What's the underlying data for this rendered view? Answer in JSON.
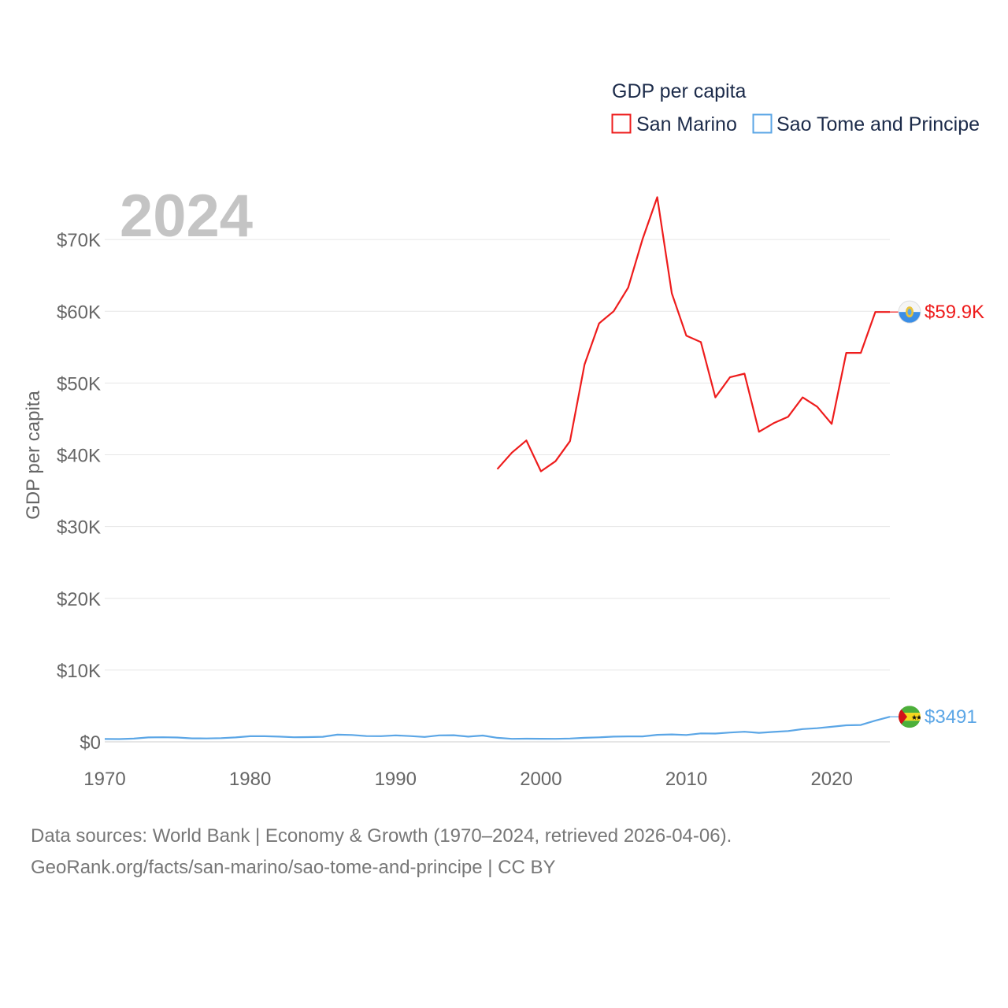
{
  "legend": {
    "title": "GDP per capita",
    "items": [
      {
        "label": "San Marino",
        "color": "#ee1c1c"
      },
      {
        "label": "Sao Tome and Principe",
        "color": "#5ba6e6"
      }
    ]
  },
  "year_label": "2024",
  "end_labels": {
    "san_marino": "$59.9K",
    "sao_tome": "$3491"
  },
  "source": {
    "line1": "Data sources: World Bank | Economy & Growth (1970–2024, retrieved 2026-04-06).",
    "line2": "GeoRank.org/facts/san-marino/sao-tome-and-principe | CC BY"
  },
  "chart_data": {
    "type": "line",
    "title": "GDP per capita",
    "xlabel": "",
    "ylabel": "GDP per capita",
    "xlim": [
      1970,
      2024
    ],
    "ylim": [
      0,
      80000
    ],
    "x_ticks": [
      1970,
      1980,
      1990,
      2000,
      2010,
      2020
    ],
    "x_tick_labels": [
      "1970",
      "1980",
      "1990",
      "2000",
      "2010",
      "2020"
    ],
    "y_ticks": [
      0,
      10000,
      20000,
      30000,
      40000,
      50000,
      60000,
      70000
    ],
    "y_tick_labels": [
      "$0",
      "$10K",
      "$20K",
      "$30K",
      "$40K",
      "$50K",
      "$60K",
      "$70K"
    ],
    "grid": true,
    "legend_position": "top-right",
    "series": [
      {
        "name": "San Marino",
        "color": "#ee1c1c",
        "x": [
          1997,
          1998,
          1999,
          2000,
          2001,
          2002,
          2003,
          2004,
          2005,
          2006,
          2007,
          2008,
          2009,
          2010,
          2011,
          2012,
          2013,
          2014,
          2015,
          2016,
          2017,
          2018,
          2019,
          2020,
          2021,
          2022,
          2023,
          2024
        ],
        "values": [
          38000,
          40300,
          42000,
          37700,
          39100,
          41900,
          52600,
          58300,
          60000,
          63300,
          70100,
          75900,
          62500,
          56600,
          55700,
          48000,
          50800,
          51300,
          43200,
          44400,
          45300,
          48000,
          46700,
          44300,
          54200,
          54200,
          59900,
          59900
        ]
      },
      {
        "name": "Sao Tome and Principe",
        "color": "#5ba6e6",
        "x": [
          1970,
          1971,
          1972,
          1973,
          1974,
          1975,
          1976,
          1977,
          1978,
          1979,
          1980,
          1981,
          1982,
          1983,
          1984,
          1985,
          1986,
          1987,
          1988,
          1989,
          1990,
          1991,
          1992,
          1993,
          1994,
          1995,
          1996,
          1997,
          1998,
          1999,
          2000,
          2001,
          2002,
          2003,
          2004,
          2005,
          2006,
          2007,
          2008,
          2009,
          2010,
          2011,
          2012,
          2013,
          2014,
          2015,
          2016,
          2017,
          2018,
          2019,
          2020,
          2021,
          2022,
          2023,
          2024
        ],
        "values": [
          400,
          380,
          450,
          620,
          640,
          600,
          480,
          470,
          520,
          620,
          780,
          780,
          720,
          640,
          660,
          700,
          1000,
          950,
          800,
          790,
          900,
          800,
          680,
          900,
          920,
          720,
          880,
          560,
          420,
          440,
          430,
          420,
          460,
          560,
          630,
          720,
          760,
          760,
          980,
          1030,
          960,
          1170,
          1150,
          1300,
          1400,
          1250,
          1380,
          1500,
          1780,
          1900,
          2100,
          2300,
          2350,
          2950,
          3491
        ]
      }
    ]
  }
}
